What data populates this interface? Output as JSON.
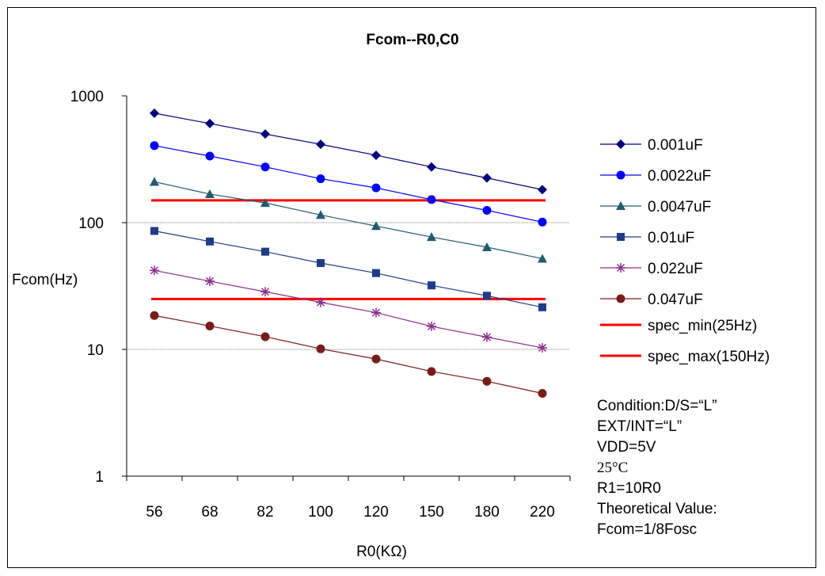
{
  "chart_data": {
    "type": "line",
    "title": "Fcom--R0,C0",
    "xlabel": "R0(KΩ)",
    "ylabel": "Fcom(Hz)",
    "y_scale": "log",
    "ylim": [
      1,
      1000
    ],
    "y_ticks": [
      "1000",
      "100",
      "10",
      "1"
    ],
    "categories": [
      "56",
      "68",
      "82",
      "100",
      "120",
      "150",
      "180",
      "220"
    ],
    "legend_position": "right",
    "gridlines": "horizontal at 10 and 100",
    "series": [
      {
        "name": "0.001uF",
        "marker": "diamond",
        "color": "#000080",
        "values": [
          730,
          605,
          500,
          415,
          340,
          275,
          225,
          182
        ]
      },
      {
        "name": "0.0022uF",
        "marker": "circle",
        "color": "#0000FF",
        "values": [
          405,
          335,
          275,
          222,
          188,
          152,
          125,
          101
        ]
      },
      {
        "name": "0.0047uF",
        "marker": "triangle",
        "color": "#1F5C70",
        "values": [
          210,
          168,
          143,
          115,
          94,
          77,
          64,
          52
        ]
      },
      {
        "name": "0.01uF",
        "marker": "square",
        "color": "#1F3C88",
        "values": [
          86,
          71,
          59,
          48,
          40,
          32,
          26.5,
          21.5
        ]
      },
      {
        "name": "0.022uF",
        "marker": "star",
        "color": "#8B2F8B",
        "values": [
          42,
          34.5,
          28.5,
          23.5,
          19.5,
          15.2,
          12.5,
          10.3
        ]
      },
      {
        "name": "0.047uF",
        "marker": "circle",
        "color": "#7A1A1A",
        "values": [
          18.5,
          15.3,
          12.6,
          10.1,
          8.4,
          6.7,
          5.6,
          4.5
        ]
      }
    ],
    "reference_lines": [
      {
        "name": "spec_min(25Hz)",
        "value": 25,
        "color": "#FF0000"
      },
      {
        "name": "spec_max(150Hz)",
        "value": 150,
        "color": "#FF0000"
      }
    ]
  },
  "conditions": {
    "line1": "Condition:D/S=“L”",
    "line2": "EXT/INT=“L”",
    "line3": "VDD=5V",
    "line4": "25°C",
    "line5": "R1=10R0",
    "line6": "Theoretical Value:",
    "line7": "Fcom=1/8Fosc"
  }
}
